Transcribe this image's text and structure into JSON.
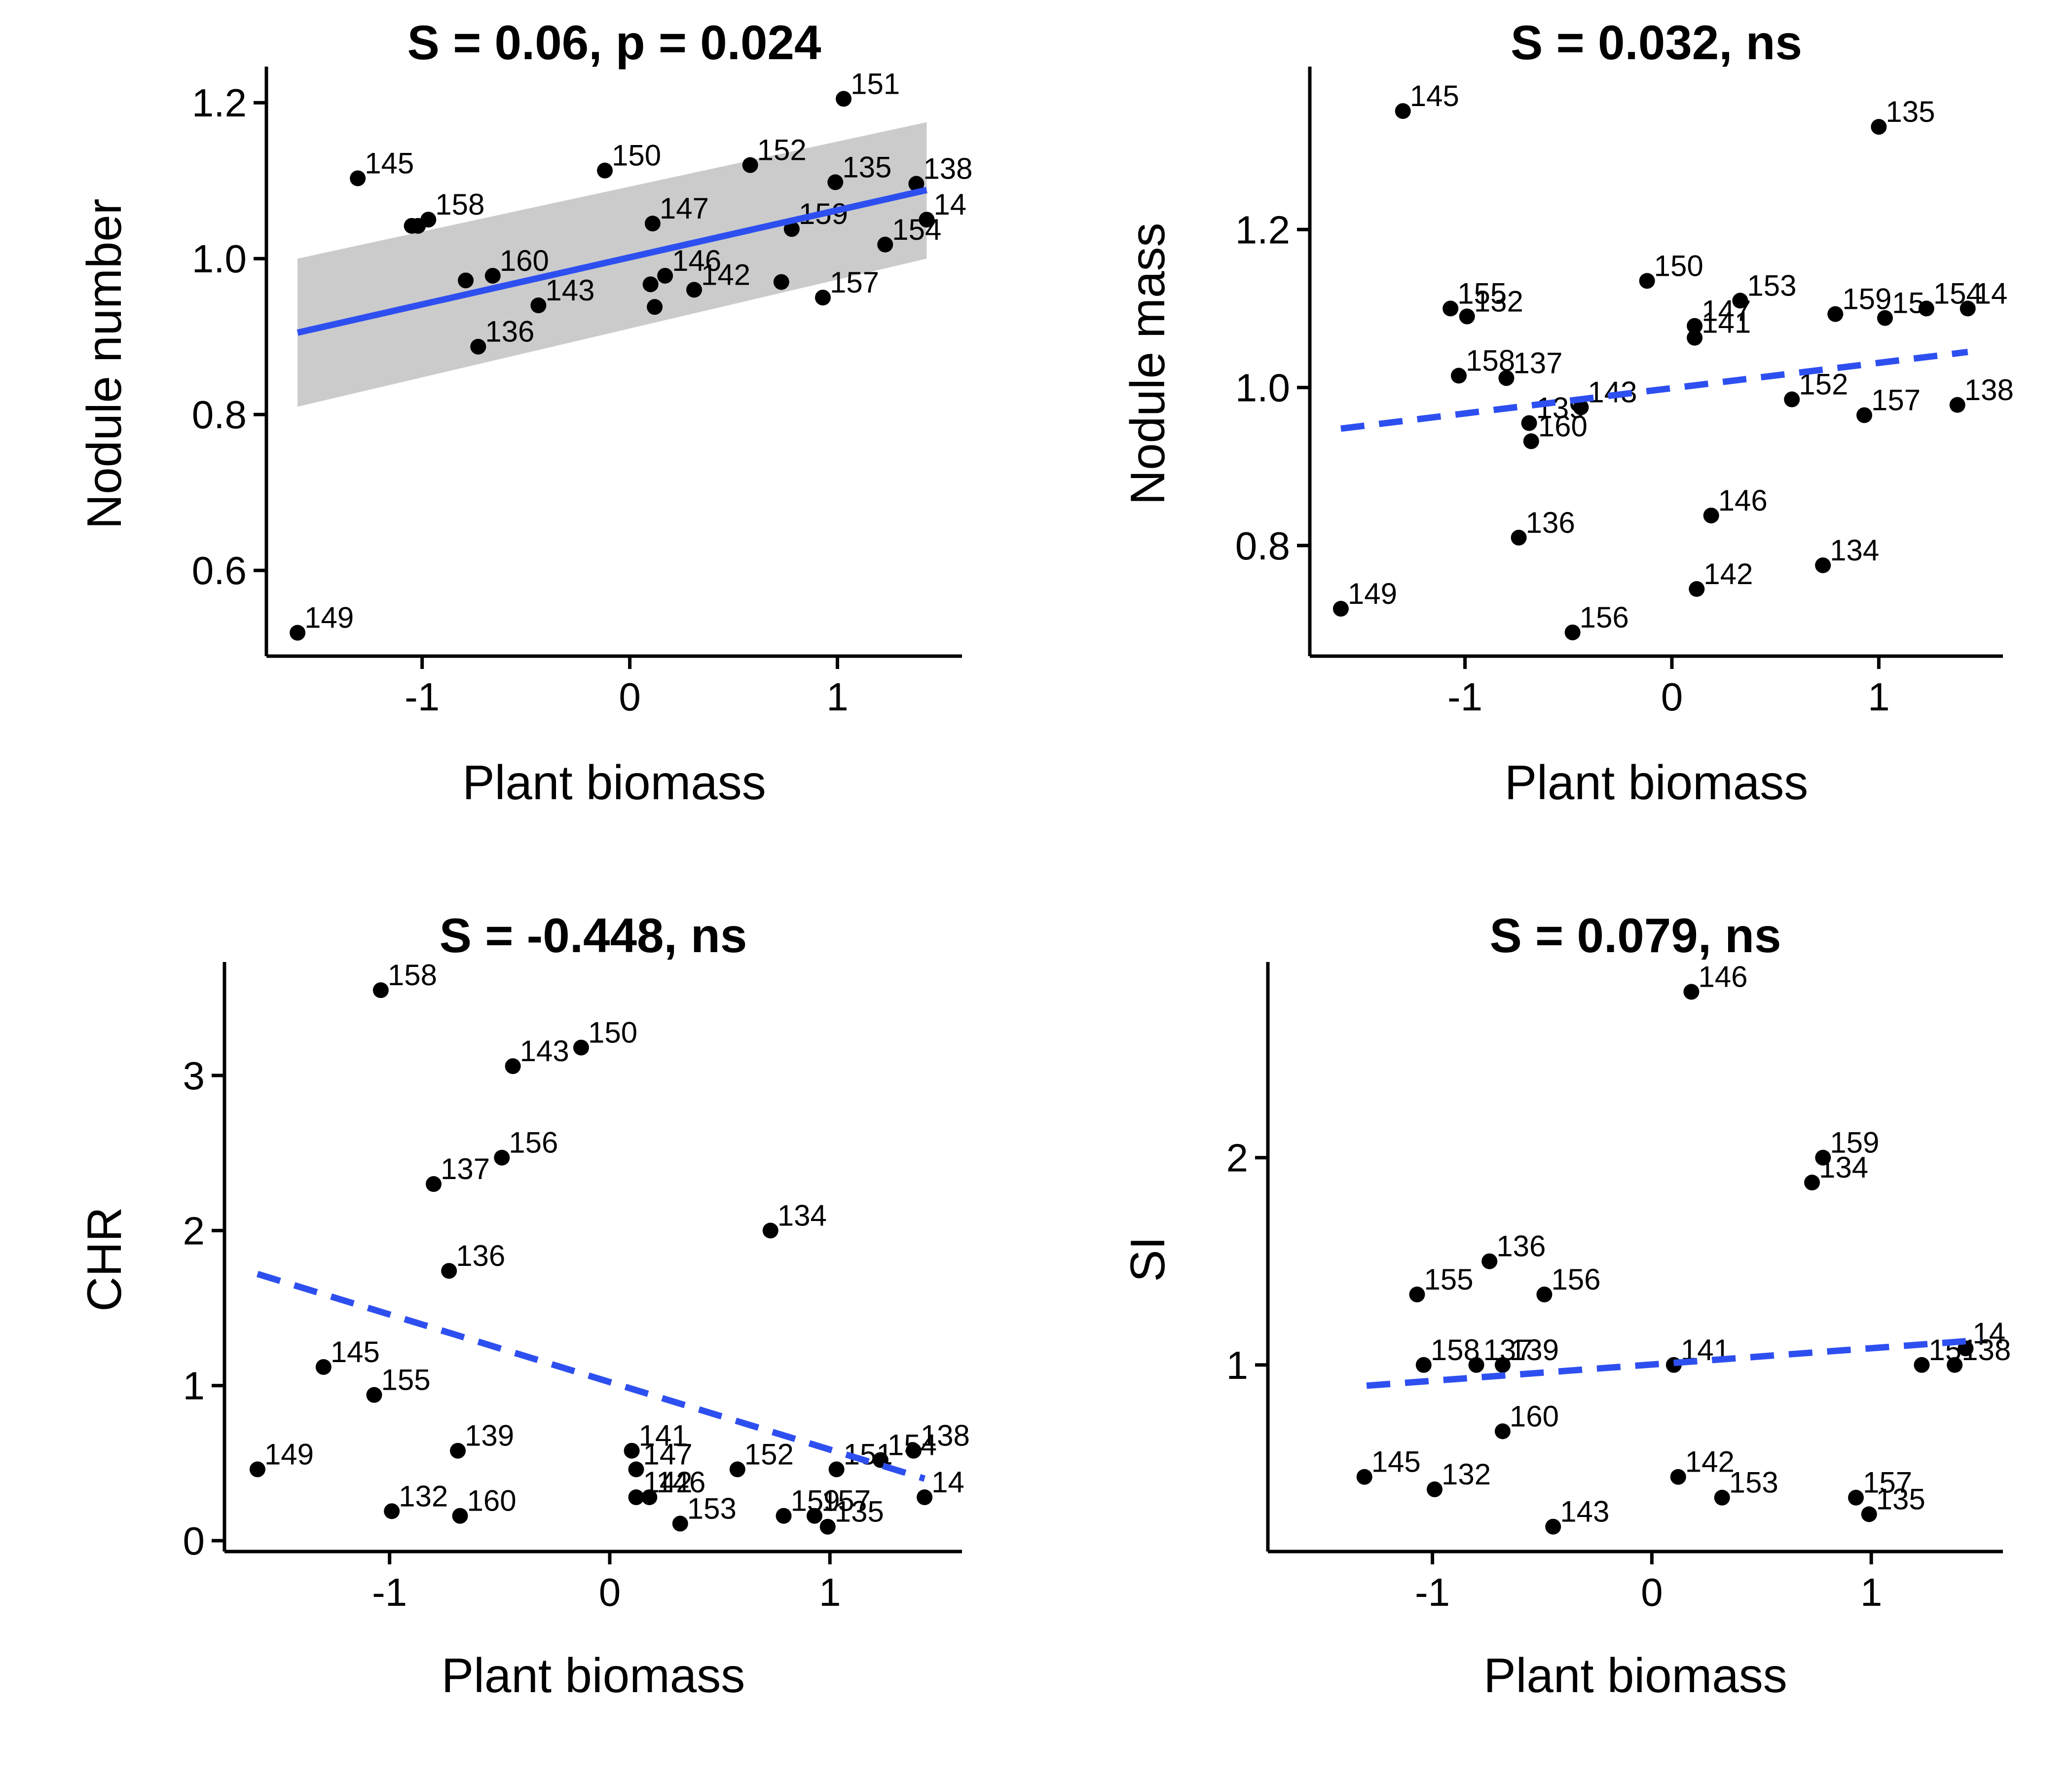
{
  "colors": {
    "trend_line": "#2E4FF0",
    "confidence_band": "#C8C8C8",
    "points": "#000000",
    "axis": "#000000"
  },
  "chart_data": [
    {
      "type": "scatter",
      "title": "S = 0.06, p = 0.024",
      "xlabel": "Plant biomass",
      "ylabel": "Nodule number",
      "xlim": [
        -1.75,
        1.6
      ],
      "ylim": [
        0.49,
        1.24
      ],
      "xticks": [
        -1,
        0,
        1
      ],
      "yticks": [
        0.6,
        0.8,
        1.0,
        1.2
      ],
      "ytick_labels": [
        "0.6",
        "0.8",
        "1.0",
        "1.2"
      ],
      "trend": {
        "style": "solid",
        "x": [
          -1.6,
          1.43
        ],
        "y": [
          0.905,
          1.088
        ],
        "band": {
          "x": [
            -1.6,
            1.43
          ],
          "lower": [
            0.81,
            1.0
          ],
          "upper": [
            1.0,
            1.175
          ]
        }
      },
      "points": [
        {
          "label": "151",
          "x": 1.03,
          "y": 1.205
        },
        {
          "label": "145",
          "x": -1.31,
          "y": 1.103
        },
        {
          "label": "150",
          "x": -0.12,
          "y": 1.113
        },
        {
          "label": "152",
          "x": 0.58,
          "y": 1.12
        },
        {
          "label": "135",
          "x": 0.99,
          "y": 1.098
        },
        {
          "label": "138",
          "x": 1.38,
          "y": 1.096
        },
        {
          "label": "158",
          "x": -0.97,
          "y": 1.05
        },
        {
          "label": "",
          "x": -1.02,
          "y": 1.042
        },
        {
          "label": "",
          "x": -1.05,
          "y": 1.042
        },
        {
          "label": "147",
          "x": 0.11,
          "y": 1.045
        },
        {
          "label": "159",
          "x": 0.78,
          "y": 1.038
        },
        {
          "label": "14",
          "x": 1.43,
          "y": 1.05
        },
        {
          "label": "154",
          "x": 1.23,
          "y": 1.018
        },
        {
          "label": "160",
          "x": -0.66,
          "y": 0.978
        },
        {
          "label": "",
          "x": -0.79,
          "y": 0.972
        },
        {
          "label": "146",
          "x": 0.17,
          "y": 0.978
        },
        {
          "label": "",
          "x": 0.1,
          "y": 0.967
        },
        {
          "label": "",
          "x": 0.73,
          "y": 0.97
        },
        {
          "label": "142",
          "x": 0.31,
          "y": 0.96
        },
        {
          "label": "157",
          "x": 0.93,
          "y": 0.95
        },
        {
          "label": "143",
          "x": -0.44,
          "y": 0.94
        },
        {
          "label": "",
          "x": 0.12,
          "y": 0.938
        },
        {
          "label": "136",
          "x": -0.73,
          "y": 0.887
        },
        {
          "label": "149",
          "x": -1.6,
          "y": 0.52
        }
      ]
    },
    {
      "type": "scatter",
      "title": "S = 0.032, ns",
      "xlabel": "Plant biomass",
      "ylabel": "Nodule mass",
      "xlim": [
        -1.75,
        1.6
      ],
      "ylim": [
        0.66,
        1.4
      ],
      "xticks": [
        -1,
        0,
        1
      ],
      "yticks": [
        0.8,
        1.0,
        1.2
      ],
      "ytick_labels": [
        "0.8",
        "1.0",
        "1.2"
      ],
      "trend": {
        "style": "dashed",
        "x": [
          -1.6,
          1.43
        ],
        "y": [
          0.948,
          1.045
        ]
      },
      "points": [
        {
          "label": "145",
          "x": -1.3,
          "y": 1.35
        },
        {
          "label": "135",
          "x": 1.0,
          "y": 1.33
        },
        {
          "label": "150",
          "x": -0.12,
          "y": 1.135
        },
        {
          "label": "153",
          "x": 0.33,
          "y": 1.11
        },
        {
          "label": "155",
          "x": -1.07,
          "y": 1.1
        },
        {
          "label": "132",
          "x": -0.99,
          "y": 1.09
        },
        {
          "label": "147",
          "x": 0.11,
          "y": 1.078
        },
        {
          "label": "141",
          "x": 0.11,
          "y": 1.063
        },
        {
          "label": "159",
          "x": 0.79,
          "y": 1.093
        },
        {
          "label": "15",
          "x": 1.03,
          "y": 1.088
        },
        {
          "label": "154",
          "x": 1.23,
          "y": 1.1
        },
        {
          "label": "14",
          "x": 1.43,
          "y": 1.1
        },
        {
          "label": "158",
          "x": -1.03,
          "y": 1.015
        },
        {
          "label": "137",
          "x": -0.8,
          "y": 1.012
        },
        {
          "label": "152",
          "x": 0.58,
          "y": 0.985
        },
        {
          "label": "143",
          "x": -0.44,
          "y": 0.975
        },
        {
          "label": "138",
          "x": 1.38,
          "y": 0.978
        },
        {
          "label": "157",
          "x": 0.93,
          "y": 0.965
        },
        {
          "label": "139",
          "x": -0.69,
          "y": 0.955
        },
        {
          "label": "160",
          "x": -0.68,
          "y": 0.932
        },
        {
          "label": "146",
          "x": 0.19,
          "y": 0.838
        },
        {
          "label": "136",
          "x": -0.74,
          "y": 0.81
        },
        {
          "label": "134",
          "x": 0.73,
          "y": 0.775
        },
        {
          "label": "142",
          "x": 0.12,
          "y": 0.745
        },
        {
          "label": "149",
          "x": -1.6,
          "y": 0.72
        },
        {
          "label": "156",
          "x": -0.48,
          "y": 0.69
        }
      ]
    },
    {
      "type": "scatter",
      "title": "S = -0.448, ns",
      "xlabel": "Plant biomass",
      "ylabel": "CHR",
      "xlim": [
        -1.75,
        1.6
      ],
      "ylim": [
        -0.07,
        3.7
      ],
      "xticks": [
        -1,
        0,
        1
      ],
      "yticks": [
        0,
        1,
        2,
        3
      ],
      "ytick_labels": [
        "0",
        "1",
        "2",
        "3"
      ],
      "trend": {
        "style": "dashed",
        "x": [
          -1.6,
          1.43
        ],
        "y": [
          1.72,
          0.4
        ]
      },
      "points": [
        {
          "label": "158",
          "x": -1.04,
          "y": 3.55
        },
        {
          "label": "150",
          "x": -0.13,
          "y": 3.18
        },
        {
          "label": "143",
          "x": -0.44,
          "y": 3.06
        },
        {
          "label": "156",
          "x": -0.49,
          "y": 2.47
        },
        {
          "label": "137",
          "x": -0.8,
          "y": 2.3
        },
        {
          "label": "134",
          "x": 0.73,
          "y": 2.0
        },
        {
          "label": "136",
          "x": -0.73,
          "y": 1.74
        },
        {
          "label": "145",
          "x": -1.3,
          "y": 1.12
        },
        {
          "label": "155",
          "x": -1.07,
          "y": 0.94
        },
        {
          "label": "139",
          "x": -0.69,
          "y": 0.58
        },
        {
          "label": "141",
          "x": 0.1,
          "y": 0.58
        },
        {
          "label": "138",
          "x": 1.38,
          "y": 0.58
        },
        {
          "label": "154",
          "x": 1.23,
          "y": 0.52
        },
        {
          "label": "149",
          "x": -1.6,
          "y": 0.46
        },
        {
          "label": "147",
          "x": 0.12,
          "y": 0.46
        },
        {
          "label": "152",
          "x": 0.58,
          "y": 0.46
        },
        {
          "label": "151",
          "x": 1.03,
          "y": 0.46
        },
        {
          "label": "142",
          "x": 0.12,
          "y": 0.28
        },
        {
          "label": "146",
          "x": 0.18,
          "y": 0.28
        },
        {
          "label": "14",
          "x": 1.43,
          "y": 0.28
        },
        {
          "label": "132",
          "x": -0.99,
          "y": 0.19
        },
        {
          "label": "160",
          "x": -0.68,
          "y": 0.16
        },
        {
          "label": "159",
          "x": 0.79,
          "y": 0.16
        },
        {
          "label": "157",
          "x": 0.93,
          "y": 0.16
        },
        {
          "label": "153",
          "x": 0.32,
          "y": 0.11
        },
        {
          "label": "135",
          "x": 0.99,
          "y": 0.09
        }
      ]
    },
    {
      "type": "scatter",
      "title": "S = 0.079, ns",
      "xlabel": "Plant biomass",
      "ylabel": "SI",
      "xlim": [
        -1.75,
        1.6
      ],
      "ylim": [
        0.1,
        2.92
      ],
      "xticks": [
        -1,
        0,
        1
      ],
      "yticks": [
        1,
        2
      ],
      "ytick_labels": [
        "1",
        "2"
      ],
      "trend": {
        "style": "dashed",
        "x": [
          -1.3,
          1.5
        ],
        "y": [
          0.9,
          1.12
        ]
      },
      "points": [
        {
          "label": "146",
          "x": 0.18,
          "y": 2.8
        },
        {
          "label": "159",
          "x": 0.78,
          "y": 2.0
        },
        {
          "label": "134",
          "x": 0.73,
          "y": 1.88
        },
        {
          "label": "136",
          "x": -0.74,
          "y": 1.5
        },
        {
          "label": "155",
          "x": -1.07,
          "y": 1.34
        },
        {
          "label": "156",
          "x": -0.49,
          "y": 1.34
        },
        {
          "label": "14",
          "x": 1.43,
          "y": 1.08
        },
        {
          "label": "158",
          "x": -1.04,
          "y": 1.0
        },
        {
          "label": "137",
          "x": -0.8,
          "y": 1.0
        },
        {
          "label": "139",
          "x": -0.68,
          "y": 1.0
        },
        {
          "label": "141",
          "x": 0.1,
          "y": 1.0
        },
        {
          "label": "15",
          "x": 1.23,
          "y": 1.0
        },
        {
          "label": "138",
          "x": 1.38,
          "y": 1.0
        },
        {
          "label": "160",
          "x": -0.68,
          "y": 0.68
        },
        {
          "label": "145",
          "x": -1.31,
          "y": 0.46
        },
        {
          "label": "142",
          "x": 0.12,
          "y": 0.46
        },
        {
          "label": "132",
          "x": -0.99,
          "y": 0.4
        },
        {
          "label": "153",
          "x": 0.32,
          "y": 0.36
        },
        {
          "label": "157",
          "x": 0.93,
          "y": 0.36
        },
        {
          "label": "135",
          "x": 0.99,
          "y": 0.28
        },
        {
          "label": "143",
          "x": -0.45,
          "y": 0.22
        }
      ]
    }
  ]
}
